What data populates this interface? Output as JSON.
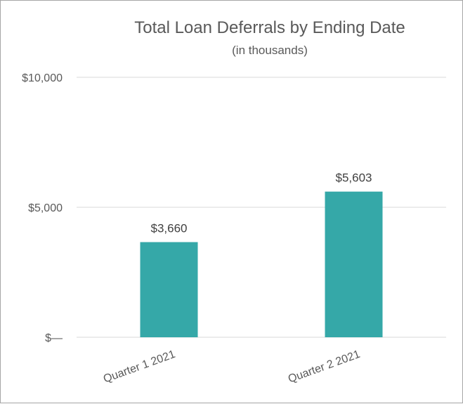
{
  "chart_data": {
    "type": "bar",
    "title": "Total Loan Deferrals by Ending Date",
    "subtitle": "(in thousands)",
    "xlabel": "",
    "ylabel": "",
    "categories": [
      "Quarter 1 2021",
      "Quarter 2 2021"
    ],
    "series": [
      {
        "values": [
          3660,
          5603
        ],
        "value_labels": [
          "$3,660",
          "$5,603"
        ],
        "color": "#35A8A8"
      }
    ],
    "ylim": [
      0,
      10000
    ],
    "yticks": [
      0,
      5000,
      10000
    ],
    "ytick_labels": [
      "$—",
      "$5,000",
      "$10,000"
    ],
    "grid": true,
    "legend": "none"
  }
}
